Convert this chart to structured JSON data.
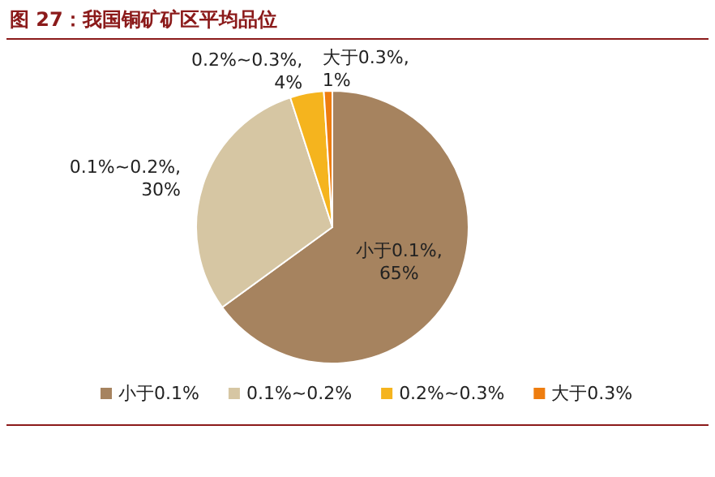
{
  "chart_data": {
    "type": "pie",
    "title": "图 27：我国铜矿矿区平均品位",
    "categories": [
      "小于0.1%",
      "0.1%~0.2%",
      "0.2%~0.3%",
      "大于0.3%"
    ],
    "values": [
      65,
      30,
      4,
      1
    ],
    "colors": [
      "#a6835f",
      "#d6c6a3",
      "#f5b41e",
      "#ee7d0f"
    ],
    "value_labels": [
      "小于0.1%,\n65%",
      "0.1%~0.2%,\n30%",
      "0.2%~0.3%,\n4%",
      "大于0.3%,\n1%"
    ],
    "legend": "bottom"
  }
}
